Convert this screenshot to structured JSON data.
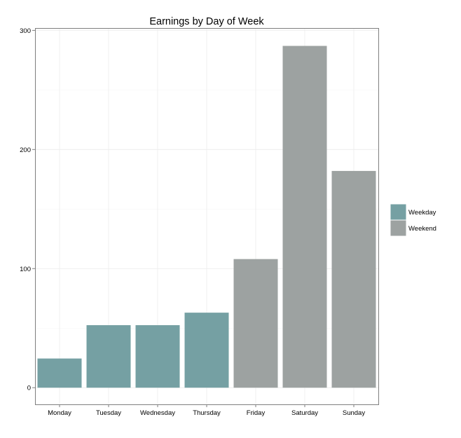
{
  "chart_data": {
    "type": "bar",
    "title": "Earnings by Day of Week",
    "xlabel": "",
    "ylabel": "",
    "categories": [
      "Monday",
      "Tuesday",
      "Wednesday",
      "Thursday",
      "Friday",
      "Saturday",
      "Sunday"
    ],
    "values": [
      24.5,
      52.5,
      52.5,
      63,
      108,
      287,
      182
    ],
    "groups": [
      "Weekday",
      "Weekday",
      "Weekday",
      "Weekday",
      "Weekend",
      "Weekend",
      "Weekend"
    ],
    "legend": [
      {
        "label": "Weekday",
        "color": "#75a0a3"
      },
      {
        "label": "Weekend",
        "color": "#9da2a1"
      }
    ],
    "legend_position": "right",
    "ylim": [
      -14,
      302
    ],
    "yticks": [
      0,
      100,
      200,
      300
    ],
    "grid": true
  }
}
